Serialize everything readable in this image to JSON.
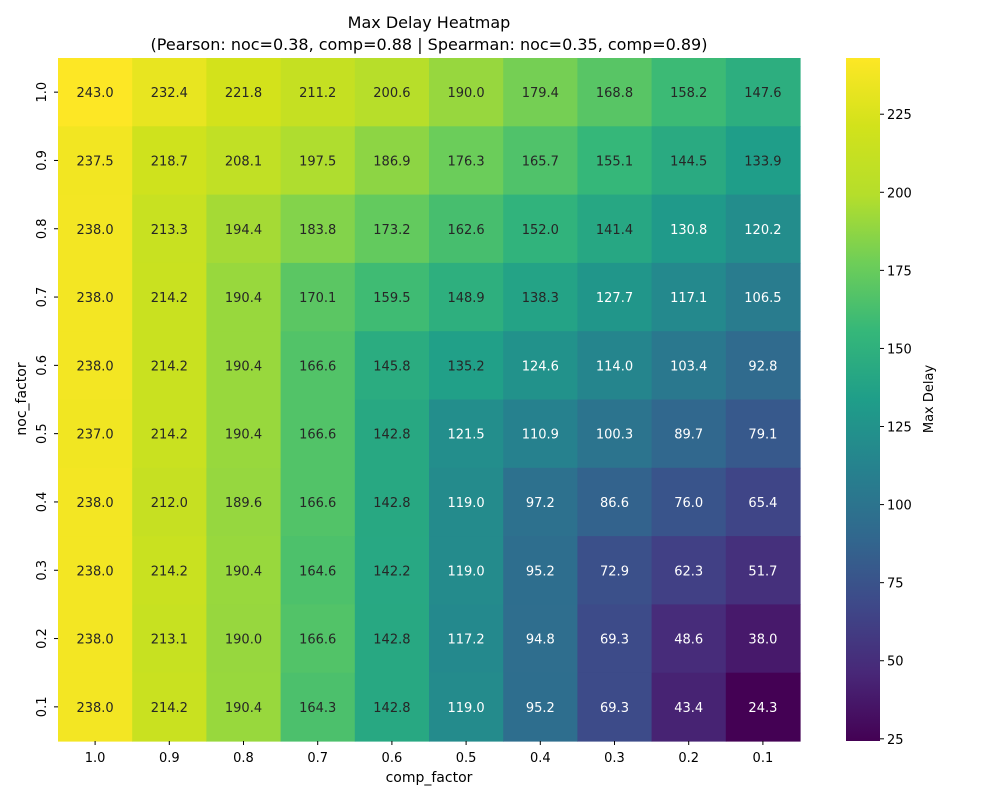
{
  "chart_data": {
    "type": "heatmap",
    "title": "Max Delay Heatmap",
    "subtitle": "(Pearson: noc=0.38, comp=0.88 | Spearman: noc=0.35, comp=0.89)",
    "xlabel": "comp_factor",
    "ylabel": "noc_factor",
    "x_categories": [
      "1.0",
      "0.9",
      "0.8",
      "0.7",
      "0.6",
      "0.5",
      "0.4",
      "0.3",
      "0.2",
      "0.1"
    ],
    "y_categories": [
      "1.0",
      "0.9",
      "0.8",
      "0.7",
      "0.6",
      "0.5",
      "0.4",
      "0.3",
      "0.2",
      "0.1"
    ],
    "values": [
      [
        243.0,
        232.4,
        221.8,
        211.2,
        200.6,
        190.0,
        179.4,
        168.8,
        158.2,
        147.6
      ],
      [
        237.5,
        218.7,
        208.1,
        197.5,
        186.9,
        176.3,
        165.7,
        155.1,
        144.5,
        133.9
      ],
      [
        238.0,
        213.3,
        194.4,
        183.8,
        173.2,
        162.6,
        152.0,
        141.4,
        130.8,
        120.2
      ],
      [
        238.0,
        214.2,
        190.4,
        170.1,
        159.5,
        148.9,
        138.3,
        127.7,
        117.1,
        106.5
      ],
      [
        238.0,
        214.2,
        190.4,
        166.6,
        145.8,
        135.2,
        124.6,
        114.0,
        103.4,
        92.8
      ],
      [
        237.0,
        214.2,
        190.4,
        166.6,
        142.8,
        121.5,
        110.9,
        100.3,
        89.7,
        79.1
      ],
      [
        238.0,
        212.0,
        189.6,
        166.6,
        142.8,
        119.0,
        97.2,
        86.6,
        76.0,
        65.4
      ],
      [
        238.0,
        214.2,
        190.4,
        164.6,
        142.2,
        119.0,
        95.2,
        72.9,
        62.3,
        51.7
      ],
      [
        238.0,
        213.1,
        190.0,
        166.6,
        142.8,
        117.2,
        94.8,
        69.3,
        48.6,
        38.0
      ],
      [
        238.0,
        214.2,
        190.4,
        164.3,
        142.8,
        119.0,
        95.2,
        69.3,
        43.4,
        24.3
      ]
    ],
    "colorbar": {
      "label": "Max Delay",
      "vmin": 24.3,
      "vmax": 243.0,
      "ticks": [
        25,
        50,
        75,
        100,
        125,
        150,
        175,
        200,
        225
      ],
      "colormap": "viridis"
    }
  }
}
